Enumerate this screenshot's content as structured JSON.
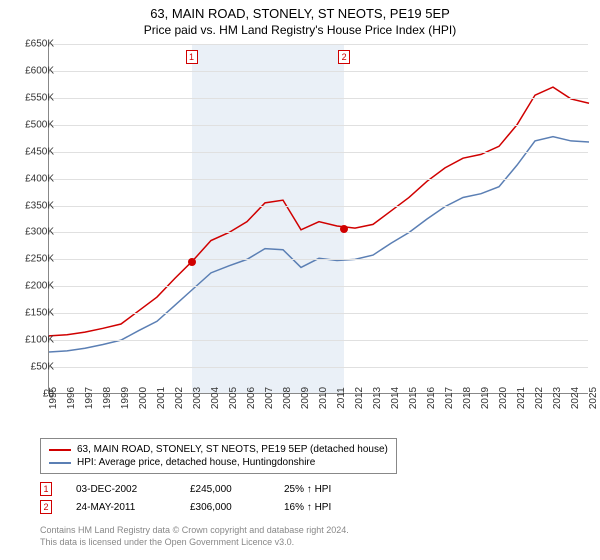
{
  "title": "63, MAIN ROAD, STONELY, ST NEOTS, PE19 5EP",
  "subtitle": "Price paid vs. HM Land Registry's House Price Index (HPI)",
  "chart": {
    "type": "line",
    "background_color": "#ffffff",
    "grid_color": "#e0e0e0",
    "axis_color": "#888888",
    "shade_color": "#eaf0f7",
    "x_years": [
      1995,
      1996,
      1997,
      1998,
      1999,
      2000,
      2001,
      2002,
      2003,
      2004,
      2005,
      2006,
      2007,
      2008,
      2009,
      2010,
      2011,
      2012,
      2013,
      2014,
      2015,
      2016,
      2017,
      2018,
      2019,
      2020,
      2021,
      2022,
      2023,
      2024,
      2025
    ],
    "xlim": [
      1995,
      2025
    ],
    "ylim": [
      0,
      650000
    ],
    "ytick_step": 50000,
    "ytick_prefix": "£",
    "ytick_labels": [
      "£0",
      "£50K",
      "£100K",
      "£150K",
      "£200K",
      "£250K",
      "£300K",
      "£350K",
      "£400K",
      "£450K",
      "£500K",
      "£550K",
      "£600K",
      "£650K"
    ],
    "tick_fontsize": 10,
    "line_width": 1.5,
    "series": [
      {
        "name": "63, MAIN ROAD, STONELY, ST NEOTS, PE19 5EP (detached house)",
        "color": "#d00000",
        "data": [
          [
            1995,
            108000
          ],
          [
            1996,
            110000
          ],
          [
            1997,
            115000
          ],
          [
            1998,
            122000
          ],
          [
            1999,
            130000
          ],
          [
            2000,
            155000
          ],
          [
            2001,
            180000
          ],
          [
            2002,
            215000
          ],
          [
            2003,
            248000
          ],
          [
            2004,
            285000
          ],
          [
            2005,
            300000
          ],
          [
            2006,
            320000
          ],
          [
            2007,
            355000
          ],
          [
            2008,
            360000
          ],
          [
            2009,
            305000
          ],
          [
            2010,
            320000
          ],
          [
            2011,
            312000
          ],
          [
            2012,
            308000
          ],
          [
            2013,
            315000
          ],
          [
            2014,
            340000
          ],
          [
            2015,
            365000
          ],
          [
            2016,
            395000
          ],
          [
            2017,
            420000
          ],
          [
            2018,
            438000
          ],
          [
            2019,
            445000
          ],
          [
            2020,
            460000
          ],
          [
            2021,
            500000
          ],
          [
            2022,
            555000
          ],
          [
            2023,
            570000
          ],
          [
            2024,
            548000
          ],
          [
            2025,
            540000
          ]
        ]
      },
      {
        "name": "HPI: Average price, detached house, Huntingdonshire",
        "color": "#5b7fb4",
        "data": [
          [
            1995,
            78000
          ],
          [
            1996,
            80000
          ],
          [
            1997,
            85000
          ],
          [
            1998,
            92000
          ],
          [
            1999,
            100000
          ],
          [
            2000,
            118000
          ],
          [
            2001,
            135000
          ],
          [
            2002,
            165000
          ],
          [
            2003,
            195000
          ],
          [
            2004,
            225000
          ],
          [
            2005,
            238000
          ],
          [
            2006,
            250000
          ],
          [
            2007,
            270000
          ],
          [
            2008,
            268000
          ],
          [
            2009,
            235000
          ],
          [
            2010,
            252000
          ],
          [
            2011,
            248000
          ],
          [
            2012,
            250000
          ],
          [
            2013,
            258000
          ],
          [
            2014,
            280000
          ],
          [
            2015,
            300000
          ],
          [
            2016,
            325000
          ],
          [
            2017,
            348000
          ],
          [
            2018,
            365000
          ],
          [
            2019,
            372000
          ],
          [
            2020,
            385000
          ],
          [
            2021,
            425000
          ],
          [
            2022,
            470000
          ],
          [
            2023,
            478000
          ],
          [
            2024,
            470000
          ],
          [
            2025,
            468000
          ]
        ]
      }
    ],
    "shade_range": [
      2002.92,
      2011.4
    ],
    "markers": [
      {
        "label": "1",
        "x": 2002.92,
        "y": 245000
      },
      {
        "label": "2",
        "x": 2011.4,
        "y": 306000
      }
    ]
  },
  "legend": {
    "items": [
      {
        "color": "#d00000",
        "label": "63, MAIN ROAD, STONELY, ST NEOTS, PE19 5EP (detached house)"
      },
      {
        "color": "#5b7fb4",
        "label": "HPI: Average price, detached house, Huntingdonshire"
      }
    ]
  },
  "sales": [
    {
      "marker": "1",
      "date": "03-DEC-2002",
      "price": "£245,000",
      "delta": "25% ↑ HPI"
    },
    {
      "marker": "2",
      "date": "24-MAY-2011",
      "price": "£306,000",
      "delta": "16% ↑ HPI"
    }
  ],
  "footer": {
    "line1": "Contains HM Land Registry data © Crown copyright and database right 2024.",
    "line2": "This data is licensed under the Open Government Licence v3.0."
  }
}
